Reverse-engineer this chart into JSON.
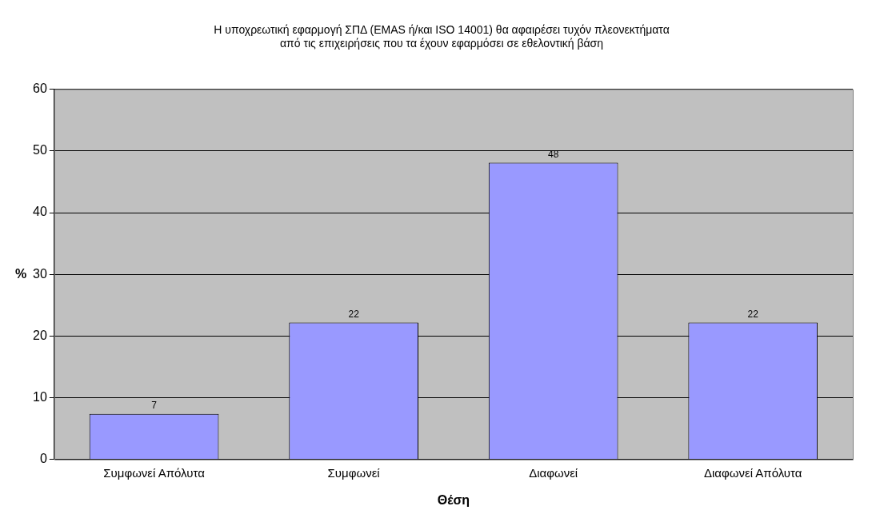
{
  "chart_data": {
    "type": "bar",
    "title": "Η υποχρεωτική εφαρμογή ΣΠΔ (EMAS ή/και ISO 14001) θα αφαιρέσει τυχόν πλεονεκτήματα\nαπό τις επιχειρήσεις που τα έχουν εφαρμόσει σε εθελοντική βάση",
    "xlabel": "Θέση",
    "ylabel": "%",
    "categories": [
      "Συμφωνεί Απόλυτα",
      "Συμφωνεί",
      "Διαφωνεί",
      "Διαφωνεί Απόλυτα"
    ],
    "values": [
      7.4,
      22.2,
      48.1,
      22.2
    ],
    "value_labels": [
      "7",
      "22",
      "48",
      "22"
    ],
    "color": "#9999ff",
    "ylim": [
      0,
      60
    ],
    "yticks": [
      0,
      10,
      20,
      30,
      40,
      50,
      60
    ],
    "grid": "y",
    "legend": false
  }
}
